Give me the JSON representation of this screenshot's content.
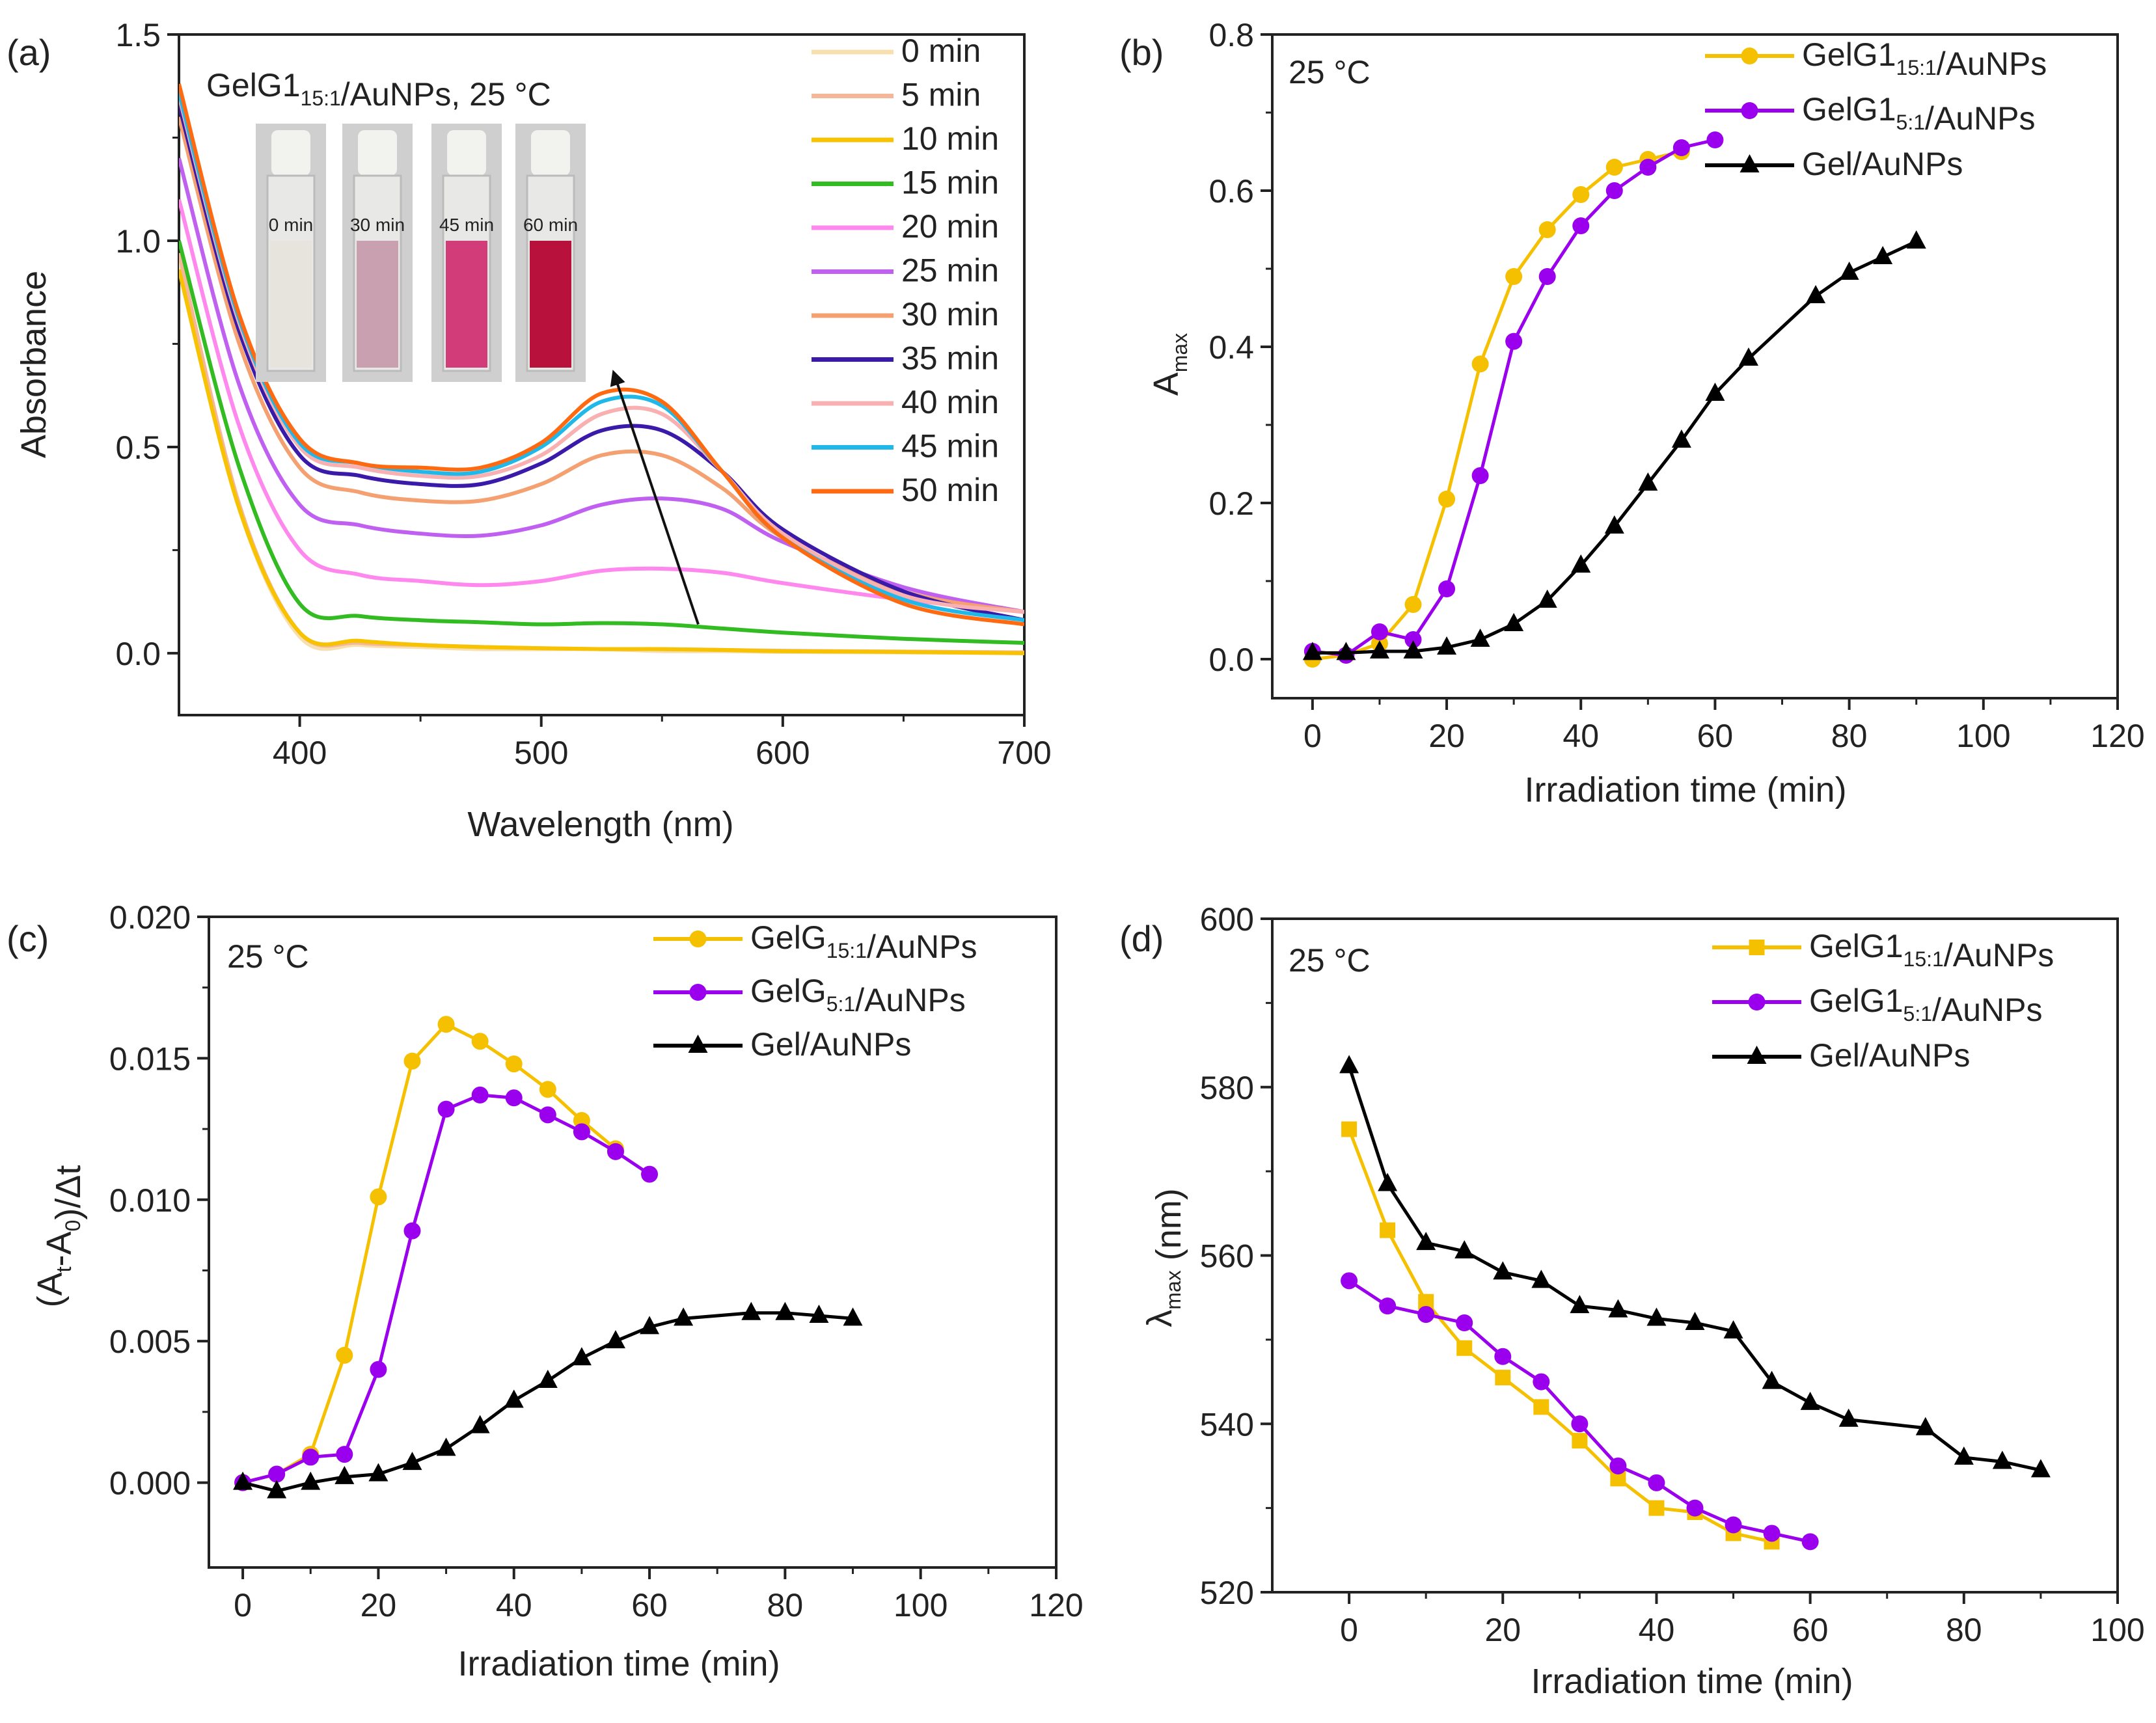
{
  "chart_data": [
    {
      "id": "a",
      "type": "line",
      "panel_label": "(a)",
      "title_parts": {
        "base": "GelG1",
        "sub": "15:1",
        "suffix": "/AuNPs, 25 °C"
      },
      "xlabel": "Wavelength (nm)",
      "ylabel": "Absorbance",
      "xlim": [
        350,
        700
      ],
      "ylim": [
        -0.15,
        1.5
      ],
      "xticks": [
        400,
        500,
        600,
        700
      ],
      "xtick_labels": [
        "400",
        "500",
        "600",
        "700"
      ],
      "yticks": [
        0.0,
        0.5,
        1.0,
        1.5
      ],
      "ytick_labels": [
        "0.0",
        "0.5",
        "1.0",
        "1.5"
      ],
      "legend_position": "top-right",
      "x": [
        350,
        375,
        400,
        425,
        450,
        475,
        500,
        525,
        550,
        575,
        600,
        650,
        700
      ],
      "series": [
        {
          "name": "0 min",
          "color": "#f8dfb0",
          "values": [
            0.95,
            0.35,
            0.04,
            0.02,
            0.015,
            0.01,
            0.01,
            0.01,
            0.005,
            0.005,
            0.003,
            0.002,
            0.0
          ]
        },
        {
          "name": "5 min",
          "color": "#f4b79a",
          "values": [
            0.97,
            0.36,
            0.05,
            0.025,
            0.02,
            0.015,
            0.012,
            0.01,
            0.01,
            0.008,
            0.006,
            0.004,
            0.002
          ]
        },
        {
          "name": "10 min",
          "color": "#f7c200",
          "values": [
            0.93,
            0.35,
            0.05,
            0.03,
            0.02,
            0.015,
            0.012,
            0.01,
            0.01,
            0.008,
            0.005,
            0.003,
            0.0
          ]
        },
        {
          "name": "15 min",
          "color": "#33bb22",
          "values": [
            1.0,
            0.45,
            0.12,
            0.09,
            0.08,
            0.075,
            0.07,
            0.073,
            0.07,
            0.06,
            0.05,
            0.035,
            0.025
          ]
        },
        {
          "name": "20 min",
          "color": "#ff88ee",
          "values": [
            1.1,
            0.55,
            0.25,
            0.19,
            0.175,
            0.165,
            0.175,
            0.2,
            0.205,
            0.195,
            0.17,
            0.13,
            0.1
          ]
        },
        {
          "name": "25 min",
          "color": "#c060f0",
          "values": [
            1.2,
            0.65,
            0.36,
            0.31,
            0.29,
            0.285,
            0.31,
            0.36,
            0.375,
            0.35,
            0.27,
            0.16,
            0.1
          ]
        },
        {
          "name": "30 min",
          "color": "#f4a070",
          "values": [
            1.3,
            0.75,
            0.45,
            0.39,
            0.37,
            0.37,
            0.41,
            0.48,
            0.48,
            0.4,
            0.28,
            0.15,
            0.1
          ]
        },
        {
          "name": "35 min",
          "color": "#3a1aa8",
          "values": [
            1.33,
            0.78,
            0.48,
            0.43,
            0.41,
            0.41,
            0.46,
            0.54,
            0.54,
            0.44,
            0.3,
            0.15,
            0.08
          ]
        },
        {
          "name": "40 min",
          "color": "#f8b0b0",
          "values": [
            1.35,
            0.8,
            0.5,
            0.45,
            0.43,
            0.43,
            0.48,
            0.58,
            0.58,
            0.44,
            0.29,
            0.14,
            0.1
          ]
        },
        {
          "name": "45 min",
          "color": "#20b8e8",
          "values": [
            1.36,
            0.81,
            0.51,
            0.46,
            0.44,
            0.44,
            0.5,
            0.61,
            0.6,
            0.44,
            0.28,
            0.13,
            0.08
          ]
        },
        {
          "name": "50 min",
          "color": "#ff6a10",
          "values": [
            1.38,
            0.82,
            0.52,
            0.46,
            0.45,
            0.45,
            0.51,
            0.63,
            0.61,
            0.44,
            0.28,
            0.12,
            0.07
          ]
        }
      ],
      "arrow": {
        "from": [
          565,
          0.07
        ],
        "to": [
          530,
          0.68
        ]
      },
      "inset_vials": [
        {
          "label": "0 min",
          "color": "#e6e4dc"
        },
        {
          "label": "30 min",
          "color": "#c9a0b0"
        },
        {
          "label": "45 min",
          "color": "#d23c78"
        },
        {
          "label": "60 min",
          "color": "#b8123c"
        }
      ]
    },
    {
      "id": "b",
      "type": "line",
      "panel_label": "(b)",
      "annotation": "25 °C",
      "xlabel": "Irradiation time (min)",
      "ylabel_parts": {
        "base": "A",
        "sub": "max"
      },
      "xlim": [
        -6,
        120
      ],
      "ylim": [
        -0.05,
        0.8
      ],
      "xticks": [
        0,
        20,
        40,
        60,
        80,
        100,
        120
      ],
      "xtick_labels": [
        "0",
        "20",
        "40",
        "60",
        "80",
        "100",
        "120"
      ],
      "yticks": [
        0.0,
        0.2,
        0.4,
        0.6,
        0.8
      ],
      "ytick_labels": [
        "0.0",
        "0.2",
        "0.4",
        "0.6",
        "0.8"
      ],
      "legend_position": "top-right",
      "series": [
        {
          "name_parts": {
            "base": "GelG1",
            "sub": "15:1",
            "suffix": "/AuNPs"
          },
          "color": "#f5c000",
          "marker": "circle",
          "x": [
            0,
            5,
            10,
            15,
            20,
            25,
            30,
            35,
            40,
            45,
            50,
            55
          ],
          "values": [
            0.0,
            0.005,
            0.02,
            0.07,
            0.205,
            0.378,
            0.49,
            0.55,
            0.595,
            0.63,
            0.64,
            0.65
          ]
        },
        {
          "name_parts": {
            "base": "GelG1",
            "sub": "5:1",
            "suffix": "/AuNPs"
          },
          "color": "#9b00ee",
          "marker": "circle",
          "x": [
            0,
            5,
            10,
            15,
            20,
            25,
            30,
            35,
            40,
            45,
            50,
            55,
            60
          ],
          "values": [
            0.01,
            0.005,
            0.035,
            0.025,
            0.09,
            0.235,
            0.407,
            0.49,
            0.555,
            0.6,
            0.63,
            0.655,
            0.665
          ]
        },
        {
          "name_parts": {
            "base": "Gel/AuNPs",
            "sub": "",
            "suffix": ""
          },
          "color": "#000000",
          "marker": "triangle",
          "x": [
            0,
            5,
            10,
            15,
            20,
            25,
            30,
            35,
            40,
            45,
            50,
            55,
            60,
            65,
            75,
            80,
            85,
            90
          ],
          "values": [
            0.008,
            0.008,
            0.01,
            0.01,
            0.015,
            0.025,
            0.045,
            0.075,
            0.12,
            0.17,
            0.225,
            0.28,
            0.34,
            0.385,
            0.465,
            0.495,
            0.515,
            0.535
          ]
        }
      ]
    },
    {
      "id": "c",
      "type": "line",
      "panel_label": "(c)",
      "annotation": "25 °C",
      "xlabel": "Irradiation time (min)",
      "ylabel_parts": {
        "p1": "(A",
        "s1": "t",
        "p2": "-A",
        "s2": "0",
        "p3": ")/Δt"
      },
      "xlim": [
        -5,
        120
      ],
      "ylim": [
        -0.003,
        0.02
      ],
      "xticks": [
        0,
        20,
        40,
        60,
        80,
        100,
        120
      ],
      "xtick_labels": [
        "0",
        "20",
        "40",
        "60",
        "80",
        "100",
        "120"
      ],
      "yticks": [
        0.0,
        0.005,
        0.01,
        0.015,
        0.02
      ],
      "ytick_labels": [
        "0.000",
        "0.005",
        "0.010",
        "0.015",
        "0.020"
      ],
      "legend_position": "top-right",
      "series": [
        {
          "name_parts": {
            "base": "GelG",
            "sub": "15:1",
            "suffix": "/AuNPs"
          },
          "color": "#f5c000",
          "marker": "circle",
          "x": [
            0,
            5,
            10,
            15,
            20,
            25,
            30,
            35,
            40,
            45,
            50,
            55
          ],
          "values": [
            0.0,
            0.0003,
            0.001,
            0.0045,
            0.0101,
            0.0149,
            0.0162,
            0.0156,
            0.0148,
            0.0139,
            0.0128,
            0.0118
          ]
        },
        {
          "name_parts": {
            "base": "GelG",
            "sub": "5:1",
            "suffix": "/AuNPs"
          },
          "color": "#9b00ee",
          "marker": "circle",
          "x": [
            0,
            5,
            10,
            15,
            20,
            25,
            30,
            35,
            40,
            45,
            50,
            55,
            60
          ],
          "values": [
            0.0,
            0.0003,
            0.0009,
            0.001,
            0.004,
            0.0089,
            0.0132,
            0.0137,
            0.0136,
            0.013,
            0.0124,
            0.0117,
            0.0109
          ]
        },
        {
          "name_parts": {
            "base": "Gel/AuNPs",
            "sub": "",
            "suffix": ""
          },
          "color": "#000000",
          "marker": "triangle",
          "x": [
            0,
            5,
            10,
            15,
            20,
            25,
            30,
            35,
            40,
            45,
            50,
            55,
            60,
            65,
            75,
            80,
            85,
            90
          ],
          "values": [
            0.0,
            -0.0003,
            0.0,
            0.0002,
            0.0003,
            0.0007,
            0.0012,
            0.002,
            0.0029,
            0.0036,
            0.0044,
            0.005,
            0.0055,
            0.0058,
            0.006,
            0.006,
            0.0059,
            0.0058
          ]
        }
      ]
    },
    {
      "id": "d",
      "type": "line",
      "panel_label": "(d)",
      "annotation": "25 °C",
      "xlabel": "Irradiation time (min)",
      "ylabel_parts": {
        "base": "λ",
        "sub": "max",
        "suffix": " (nm)"
      },
      "xlim": [
        -10,
        100
      ],
      "ylim": [
        520,
        600
      ],
      "xticks": [
        0,
        20,
        40,
        60,
        80,
        100
      ],
      "xtick_labels": [
        "0",
        "20",
        "40",
        "60",
        "80",
        "100"
      ],
      "yticks": [
        520,
        540,
        560,
        580,
        600
      ],
      "ytick_labels": [
        "520",
        "540",
        "560",
        "580",
        "600"
      ],
      "legend_position": "top-right",
      "series": [
        {
          "name_parts": {
            "base": "GelG1",
            "sub": "15:1",
            "suffix": "/AuNPs"
          },
          "color": "#f5c000",
          "marker": "square",
          "x": [
            0,
            5,
            10,
            15,
            20,
            25,
            30,
            35,
            40,
            45,
            50,
            55
          ],
          "values": [
            575,
            563,
            554.5,
            549,
            545.5,
            542,
            538,
            533.5,
            530,
            529.5,
            527,
            526
          ]
        },
        {
          "name_parts": {
            "base": "GelG1",
            "sub": "5:1",
            "suffix": "/AuNPs"
          },
          "color": "#9b00ee",
          "marker": "circle",
          "x": [
            0,
            5,
            10,
            15,
            20,
            25,
            30,
            35,
            40,
            45,
            50,
            55,
            60
          ],
          "values": [
            557,
            554,
            553,
            552,
            548,
            545,
            540,
            535,
            533,
            530,
            528,
            527,
            526
          ]
        },
        {
          "name_parts": {
            "base": "Gel/AuNPs",
            "sub": "",
            "suffix": ""
          },
          "color": "#000000",
          "marker": "triangle",
          "x": [
            0,
            5,
            10,
            15,
            20,
            25,
            30,
            35,
            40,
            45,
            50,
            55,
            60,
            65,
            75,
            80,
            85,
            90
          ],
          "values": [
            582.5,
            568.5,
            561.5,
            560.5,
            558,
            557,
            554,
            553.5,
            552.5,
            552,
            551,
            545,
            542.5,
            540.5,
            539.5,
            536,
            535.5,
            534.5
          ]
        }
      ]
    }
  ]
}
